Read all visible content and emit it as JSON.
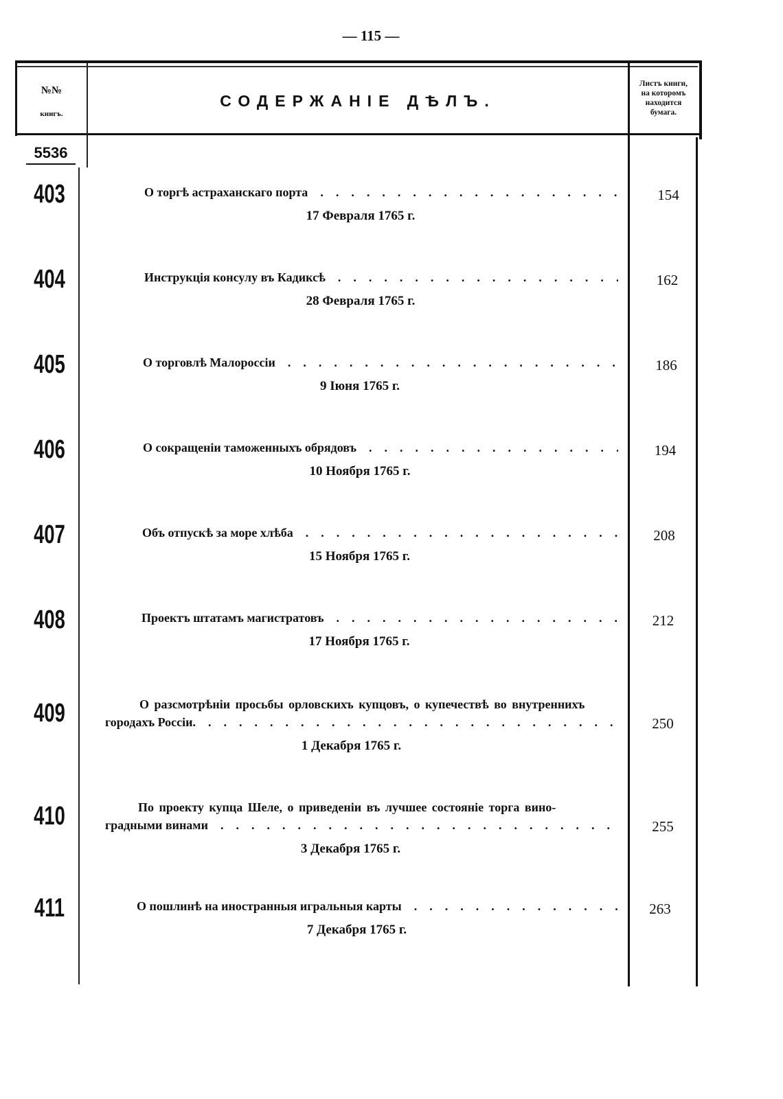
{
  "page_number": "— 115 —",
  "header": {
    "number_col_line1": "№№",
    "number_col_line2": "книгъ.",
    "title": "СОДЕРЖАНІЕ ДѢЛЪ.",
    "sheet_col": [
      "Листъ книги,",
      "на которомъ",
      "находится",
      "бумага."
    ]
  },
  "book_number": "5536",
  "entries": [
    {
      "no": "403",
      "title": "О торгѣ астраханскаго порта",
      "date": "17 Февраля 1765 г.",
      "sheet": "154"
    },
    {
      "no": "404",
      "title": "Инструкція консулу въ Кадиксѣ",
      "date": "28 Февраля 1765 г.",
      "sheet": "162"
    },
    {
      "no": "405",
      "title": "О торговлѣ Малороссіи",
      "date": "9 Іюня 1765 г.",
      "sheet": "186"
    },
    {
      "no": "406",
      "title": "О сокращеніи таможенныхъ обрядовъ",
      "date": "10 Ноября 1765 г.",
      "sheet": "194"
    },
    {
      "no": "407",
      "title": "Объ отпускѣ за море хлѣба",
      "date": "15 Ноября 1765 г.",
      "sheet": "208"
    },
    {
      "no": "408",
      "title": "Проектъ штатамъ магистратовъ",
      "date": "17 Ноября 1765 г.",
      "sheet": "212"
    },
    {
      "no": "409",
      "title": "О разсмотрѣніи просьбы орловскихъ купцовъ, о купечествѣ во внутреннихъ",
      "title2": "городахъ Россіи.",
      "date": "1 Декабря 1765 г.",
      "sheet": "250"
    },
    {
      "no": "410",
      "title": "По проекту купца Шеле, о приведеніи въ лучшее состояніе торга вино-",
      "title2": "градными винами",
      "date": "3 Декабря 1765 г.",
      "sheet": "255"
    },
    {
      "no": "411",
      "title": "О пошлинѣ на иностранныя игральныя карты",
      "date": "7 Декабря 1765 г.",
      "sheet": "263"
    }
  ]
}
